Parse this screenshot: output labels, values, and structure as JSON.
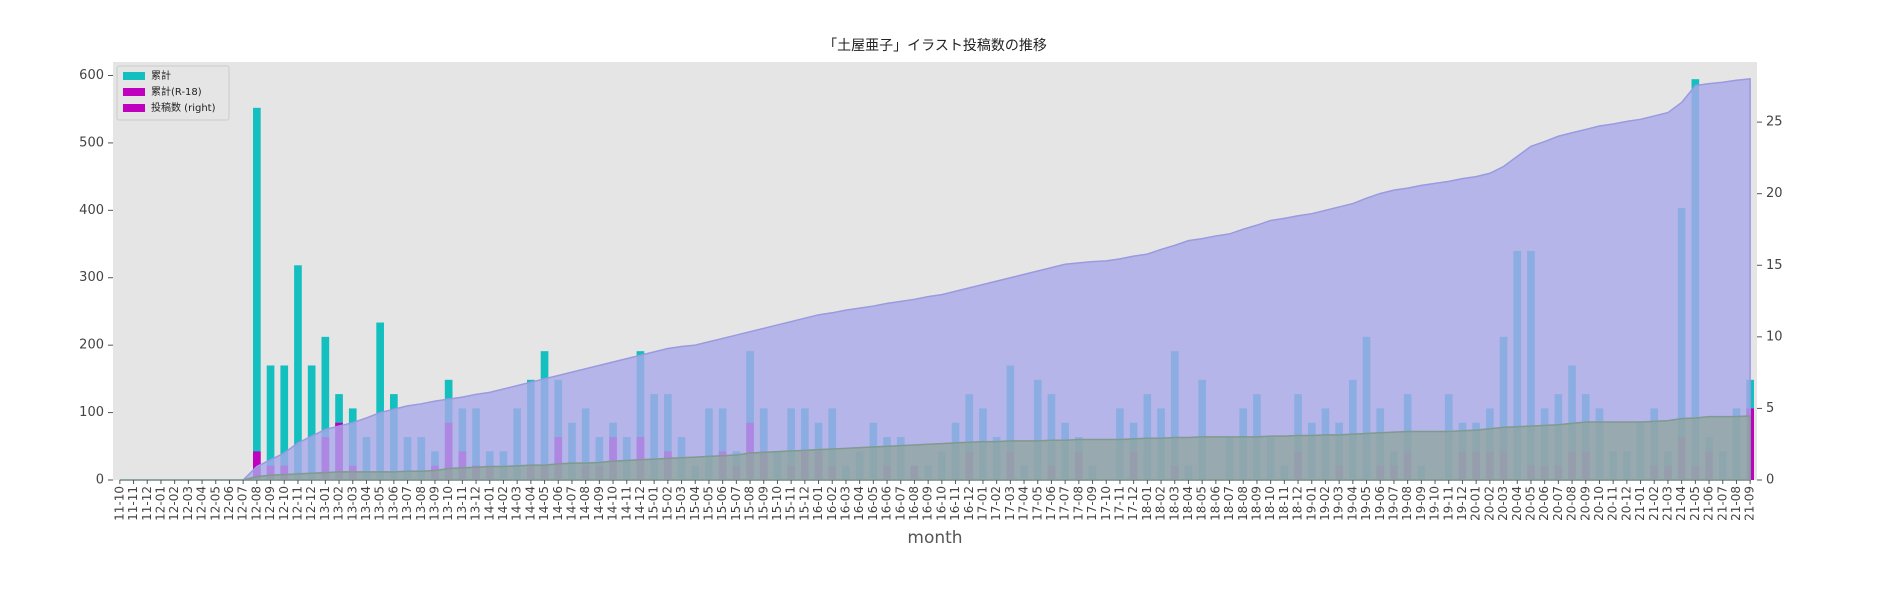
{
  "chart_data": {
    "type": "bar_area",
    "title": "「土屋亜子」イラスト投稿数の推移",
    "xlabel": "month",
    "categories": [
      "11-10",
      "11-11",
      "11-12",
      "12-01",
      "12-02",
      "12-03",
      "12-04",
      "12-05",
      "12-06",
      "12-07",
      "12-08",
      "12-09",
      "12-10",
      "12-11",
      "12-12",
      "13-01",
      "13-02",
      "13-03",
      "13-04",
      "13-05",
      "13-06",
      "13-07",
      "13-08",
      "13-09",
      "13-10",
      "13-11",
      "13-12",
      "14-01",
      "14-02",
      "14-03",
      "14-04",
      "14-05",
      "14-06",
      "14-07",
      "14-08",
      "14-09",
      "14-10",
      "14-11",
      "14-12",
      "15-01",
      "15-02",
      "15-03",
      "15-04",
      "15-05",
      "15-06",
      "15-07",
      "15-08",
      "15-09",
      "15-10",
      "15-11",
      "15-12",
      "16-01",
      "16-02",
      "16-03",
      "16-04",
      "16-05",
      "16-06",
      "16-07",
      "16-08",
      "16-09",
      "16-10",
      "16-11",
      "16-12",
      "17-01",
      "17-02",
      "17-03",
      "17-04",
      "17-05",
      "17-06",
      "17-07",
      "17-08",
      "17-09",
      "17-10",
      "17-11",
      "17-12",
      "18-01",
      "18-02",
      "18-03",
      "18-04",
      "18-05",
      "18-06",
      "18-07",
      "18-08",
      "18-09",
      "18-10",
      "18-11",
      "18-12",
      "19-01",
      "19-02",
      "19-03",
      "19-04",
      "19-05",
      "19-06",
      "19-07",
      "19-08",
      "19-09",
      "19-10",
      "19-11",
      "19-12",
      "20-01",
      "20-02",
      "20-03",
      "20-04",
      "20-05",
      "20-06",
      "20-07",
      "20-08",
      "20-09",
      "20-10",
      "20-11",
      "20-12",
      "21-01",
      "21-02",
      "21-03",
      "21-04",
      "21-05",
      "21-06",
      "21-07",
      "21-08",
      "21-09"
    ],
    "areas": [
      {
        "color": "#a9a9ea",
        "edge": "#9a9ae0",
        "values": [
          0,
          0,
          0,
          0,
          0,
          0,
          0,
          0,
          0,
          0,
          20,
          30,
          40,
          55,
          65,
          75,
          80,
          85,
          92,
          100,
          105,
          110,
          113,
          117,
          120,
          123,
          127,
          130,
          135,
          140,
          145,
          150,
          155,
          160,
          165,
          170,
          175,
          180,
          185,
          190,
          195,
          198,
          200,
          205,
          210,
          215,
          220,
          225,
          230,
          235,
          240,
          245,
          248,
          252,
          255,
          258,
          262,
          265,
          268,
          272,
          275,
          280,
          285,
          290,
          295,
          300,
          305,
          310,
          315,
          320,
          322,
          324,
          325,
          328,
          332,
          335,
          342,
          348,
          355,
          358,
          362,
          365,
          372,
          378,
          385,
          388,
          392,
          395,
          400,
          405,
          410,
          418,
          425,
          430,
          433,
          437,
          440,
          443,
          447,
          450,
          455,
          465,
          480,
          495,
          502,
          510,
          515,
          520,
          525,
          528,
          532,
          535,
          540,
          545,
          560,
          585,
          588,
          590,
          593,
          595
        ]
      },
      {
        "color": "#8fa69c",
        "edge": "#7f9a8f",
        "values": [
          0,
          0,
          0,
          0,
          0,
          0,
          0,
          0,
          0,
          0,
          5,
          7,
          8,
          9,
          10,
          11,
          12,
          12,
          12,
          12,
          12,
          13,
          13,
          14,
          17,
          18,
          19,
          20,
          20,
          21,
          22,
          22,
          24,
          25,
          25,
          26,
          28,
          29,
          30,
          31,
          32,
          33,
          34,
          35,
          36,
          37,
          40,
          41,
          42,
          43,
          44,
          45,
          46,
          47,
          48,
          49,
          50,
          51,
          52,
          53,
          54,
          55,
          56,
          57,
          57,
          58,
          58,
          58,
          59,
          59,
          60,
          60,
          60,
          60,
          61,
          62,
          62,
          63,
          63,
          64,
          64,
          64,
          64,
          64,
          65,
          65,
          66,
          66,
          67,
          67,
          68,
          69,
          70,
          71,
          72,
          72,
          72,
          72,
          73,
          74,
          76,
          78,
          79,
          80,
          81,
          82,
          84,
          86,
          86,
          86,
          86,
          86,
          87,
          88,
          91,
          92,
          94,
          94,
          94,
          95
        ]
      }
    ],
    "bars": [
      {
        "color": "#14bfbf",
        "values": [
          0,
          0,
          0,
          0,
          0,
          0,
          0,
          0,
          0,
          0,
          26,
          8,
          8,
          15,
          8,
          10,
          6,
          5,
          3,
          11,
          6,
          3,
          3,
          2,
          7,
          5,
          5,
          2,
          2,
          5,
          7,
          9,
          7,
          4,
          5,
          3,
          4,
          3,
          9,
          6,
          6,
          3,
          1,
          5,
          5,
          2,
          9,
          5,
          2,
          5,
          5,
          4,
          5,
          1,
          2,
          4,
          3,
          3,
          1,
          1,
          2,
          4,
          6,
          5,
          3,
          8,
          1,
          7,
          6,
          4,
          3,
          1,
          0,
          5,
          4,
          6,
          5,
          9,
          1,
          7,
          0,
          3,
          5,
          6,
          3,
          1,
          6,
          4,
          5,
          4,
          7,
          10,
          5,
          2,
          6,
          1,
          0,
          6,
          4,
          4,
          5,
          10,
          16,
          16,
          5,
          6,
          8,
          6,
          5,
          2,
          2,
          4,
          5,
          2,
          19,
          28,
          3,
          2,
          5,
          7
        ]
      },
      {
        "color": "#bf00bf",
        "values": [
          0,
          0,
          0,
          0,
          0,
          0,
          0,
          0,
          0,
          0,
          2,
          1,
          1,
          0,
          0,
          3,
          4,
          1,
          0,
          0,
          0,
          0,
          0,
          1,
          4,
          2,
          1,
          1,
          0,
          0,
          1,
          1,
          3,
          0,
          1,
          1,
          3,
          0,
          3,
          0,
          2,
          0,
          0,
          0,
          2,
          1,
          4,
          2,
          0,
          1,
          2,
          2,
          1,
          0,
          0,
          0,
          1,
          0,
          1,
          0,
          0,
          0,
          2,
          0,
          0,
          2,
          0,
          0,
          1,
          0,
          2,
          0,
          0,
          0,
          2,
          0,
          0,
          1,
          0,
          0,
          0,
          0,
          0,
          0,
          0,
          0,
          2,
          0,
          0,
          1,
          0,
          0,
          1,
          1,
          2,
          0,
          0,
          0,
          2,
          2,
          2,
          2,
          0,
          1,
          1,
          1,
          2,
          2,
          0,
          0,
          0,
          0,
          1,
          1,
          3,
          1,
          2,
          0,
          0,
          5
        ]
      }
    ],
    "legend": [
      {
        "label": "累計",
        "color": "#14bfbf"
      },
      {
        "label": "累計(R-18)",
        "color": "#bf00bf"
      },
      {
        "label": "投稿数 (right)",
        "color": "#bf00bf"
      }
    ],
    "ylim": [
      0,
      620
    ],
    "yticks": [
      0,
      100,
      200,
      300,
      400,
      500,
      600
    ],
    "y2lim": [
      0,
      29.2
    ],
    "y2ticks": [
      0,
      5,
      10,
      15,
      20,
      25
    ],
    "background": "#e5e5e5"
  }
}
